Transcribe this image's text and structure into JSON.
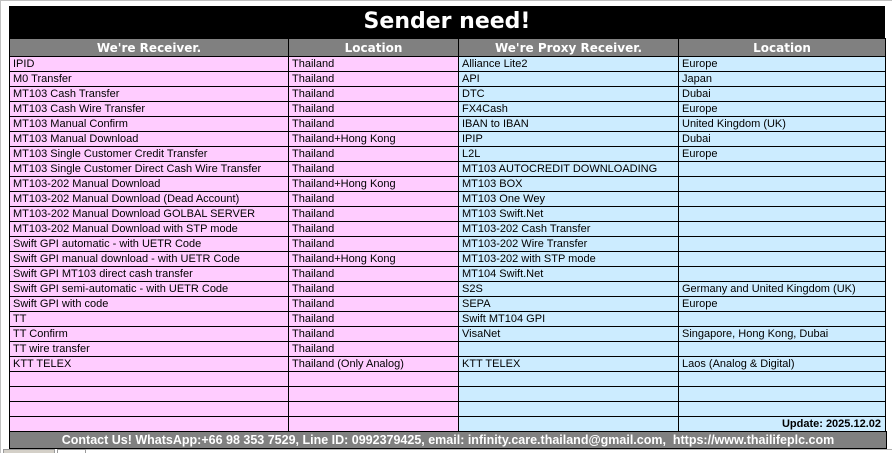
{
  "title": "Sender need!",
  "table": {
    "columns": [
      "We're Receiver.",
      "Location",
      "We're Proxy Receiver.",
      "Location"
    ],
    "rows": [
      {
        "receiver": "IPID",
        "receiver_location": "Thailand",
        "proxy": "Alliance Lite2",
        "proxy_location": "Europe"
      },
      {
        "receiver": "M0 Transfer",
        "receiver_location": "Thailand",
        "proxy": "API",
        "proxy_location": "Japan"
      },
      {
        "receiver": "MT103 Cash Transfer",
        "receiver_location": "Thailand",
        "proxy": "DTC",
        "proxy_location": "Dubai"
      },
      {
        "receiver": "MT103 Cash Wire Transfer",
        "receiver_location": "Thailand",
        "proxy": "FX4Cash",
        "proxy_location": "Europe"
      },
      {
        "receiver": "MT103 Manual Confirm",
        "receiver_location": "Thailand",
        "proxy": "IBAN to IBAN",
        "proxy_location": "United Kingdom (UK)"
      },
      {
        "receiver": "MT103 Manual Download",
        "receiver_location": "Thailand+Hong Kong",
        "proxy": "IPIP",
        "proxy_location": "Dubai"
      },
      {
        "receiver": "MT103 Single Customer Credit Transfer",
        "receiver_location": "Thailand",
        "proxy": "L2L",
        "proxy_location": "Europe"
      },
      {
        "receiver": "MT103 Single Customer Direct Cash Wire Transfer",
        "receiver_location": "Thailand",
        "proxy": "MT103 AUTOCREDIT DOWNLOADING",
        "proxy_location": ""
      },
      {
        "receiver": "MT103-202 Manual Download",
        "receiver_location": "Thailand+Hong Kong",
        "proxy": "MT103 BOX",
        "proxy_location": ""
      },
      {
        "receiver": "MT103-202 Manual Download (Dead Account)",
        "receiver_location": "Thailand",
        "proxy": "MT103 One Wey",
        "proxy_location": ""
      },
      {
        "receiver": "MT103-202 Manual Download GOLBAL SERVER",
        "receiver_location": "Thailand",
        "proxy": "MT103 Swift.Net",
        "proxy_location": ""
      },
      {
        "receiver": "MT103-202 Manual Download with STP mode",
        "receiver_location": "Thailand",
        "proxy": "MT103-202 Cash Transfer",
        "proxy_location": ""
      },
      {
        "receiver": "Swift GPI automatic - with UETR Code",
        "receiver_location": "Thailand",
        "proxy": "MT103-202 Wire Transfer",
        "proxy_location": ""
      },
      {
        "receiver": "Swift GPI manual download - with UETR Code",
        "receiver_location": "Thailand+Hong Kong",
        "proxy": "MT103-202 with STP mode",
        "proxy_location": ""
      },
      {
        "receiver": "Swift GPI MT103 direct cash transfer",
        "receiver_location": "Thailand",
        "proxy": "MT104 Swift.Net",
        "proxy_location": ""
      },
      {
        "receiver": "Swift GPI semi-automatic - with UETR Code",
        "receiver_location": "Thailand",
        "proxy": "S2S",
        "proxy_location": "Germany and United Kingdom (UK)"
      },
      {
        "receiver": "Swift GPI with code",
        "receiver_location": "Thailand",
        "proxy": "SEPA",
        "proxy_location": "Europe"
      },
      {
        "receiver": "TT",
        "receiver_location": "Thailand",
        "proxy": "Swift MT104 GPI",
        "proxy_location": ""
      },
      {
        "receiver": "TT Confirm",
        "receiver_location": "Thailand",
        "proxy": "VisaNet",
        "proxy_location": "Singapore, Hong Kong, Dubai"
      },
      {
        "receiver": "TT wire transfer",
        "receiver_location": "Thailand",
        "proxy": "",
        "proxy_location": ""
      },
      {
        "receiver": "KTT TELEX",
        "receiver_location": "Thailand (Only Analog)",
        "proxy": "KTT TELEX",
        "proxy_location": "Laos (Analog & Digital)"
      }
    ],
    "empty_row_count": 4
  },
  "update_note": "Update: 2025.12.02",
  "footer": {
    "contact": "Contact Us! WhatsApp:+66 98 353 7529, Line ID: 0992379425, email: infinity.care.thailand@gmail.com,  https://www.thailifeplc.com"
  },
  "colors": {
    "title_bg": "#000000",
    "title_text": "#FFFFFF",
    "header_bg": "#808080",
    "header_text": "#FFFFFF",
    "receiver_cell_bg": "#FFCCFF",
    "proxy_cell_bg": "#CCECFF",
    "grid_border": "#000000",
    "footer_bg": "#808080",
    "footer_text": "#FFFFFF"
  }
}
